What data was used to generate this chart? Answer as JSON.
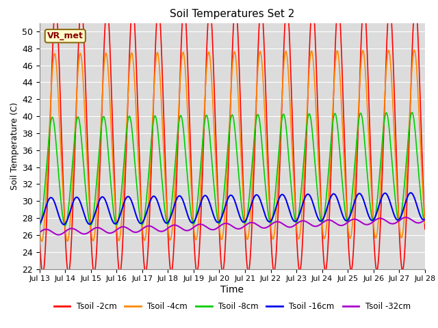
{
  "title": "Soil Temperatures Set 2",
  "xlabel": "Time",
  "ylabel": "Soil Temperature (C)",
  "ylim": [
    22,
    51
  ],
  "yticks": [
    22,
    24,
    26,
    28,
    30,
    32,
    34,
    36,
    38,
    40,
    42,
    44,
    46,
    48,
    50
  ],
  "bg_color": "#dcdcdc",
  "grid_color": "white",
  "annotation_text": "VR_met",
  "annotation_bg": "#ffffcc",
  "annotation_border": "#8B6914",
  "lines": [
    {
      "label": "Tsoil -2cm",
      "color": "#ff0000",
      "lw": 1.2
    },
    {
      "label": "Tsoil -4cm",
      "color": "#ff8800",
      "lw": 1.2
    },
    {
      "label": "Tsoil -8cm",
      "color": "#00cc00",
      "lw": 1.2
    },
    {
      "label": "Tsoil -16cm",
      "color": "#0000ee",
      "lw": 1.5
    },
    {
      "label": "Tsoil -32cm",
      "color": "#aa00cc",
      "lw": 1.5
    }
  ],
  "xtick_labels": [
    "Jul 13",
    "Jul 14",
    "Jul 15",
    "Jul 16",
    "Jul 17",
    "Jul 18",
    "Jul 19",
    "Jul 20",
    "Jul 21",
    "Jul 22",
    "Jul 23",
    "Jul 24",
    "Jul 25",
    "Jul 26",
    "Jul 27",
    "Jul 28"
  ]
}
